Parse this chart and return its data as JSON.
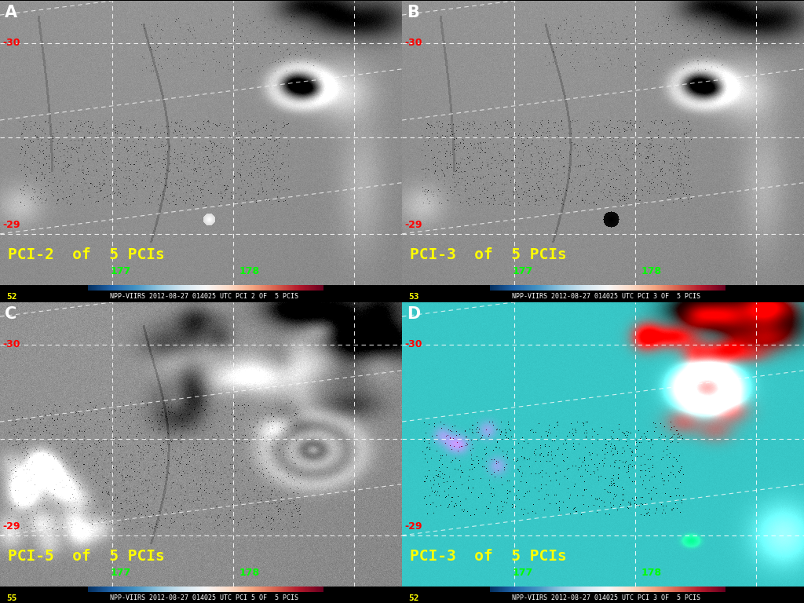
{
  "panels": [
    {
      "label": "A",
      "pci_label": "PCI-2  of  5 PCIs",
      "panel_text": "NPP-VIIRS 2012-08-27 014025 UTC PCI 2 OF  5 PCIS",
      "lat_top": "-30",
      "lat_bot": "-29",
      "lon_left": "177",
      "lon_right": "178",
      "left_number": "52",
      "panel_idx": 0
    },
    {
      "label": "B",
      "pci_label": "PCI-3  of  5 PCIs",
      "panel_text": "NPP-VIIRS 2012-08-27 014025 UTC PCI 3 OF  5 PCIS",
      "lat_top": "-30",
      "lat_bot": "-29",
      "lon_left": "177",
      "lon_right": "178",
      "left_number": "53",
      "panel_idx": 1
    },
    {
      "label": "C",
      "pci_label": "PCI-5  of  5 PCIs",
      "panel_text": "NPP-VIIRS 2012-08-27 014025 UTC PCI 5 OF  5 PCIS",
      "lat_top": "-30",
      "lat_bot": "-29",
      "lon_left": "177",
      "lon_right": "178",
      "left_number": "55",
      "panel_idx": 2
    },
    {
      "label": "D",
      "pci_label": "PCI-3  of  5 PCIs",
      "panel_text": "NPP-VIIRS 2012-08-27 014025 UTC PCI 3 OF  5 PCIS",
      "lat_top": "-30",
      "lat_bot": "-29",
      "lon_left": "177",
      "lon_right": "178",
      "left_number": "52",
      "panel_idx": 3
    }
  ],
  "figure_bg": "#000000",
  "panel_label_color": "#ffffff",
  "pci_label_color": "#ffff00",
  "lat_color": "#ff0000",
  "lon_color": "#00ff00",
  "bottom_text_color": "#ffffff",
  "bottom_bar_color": "#000000"
}
